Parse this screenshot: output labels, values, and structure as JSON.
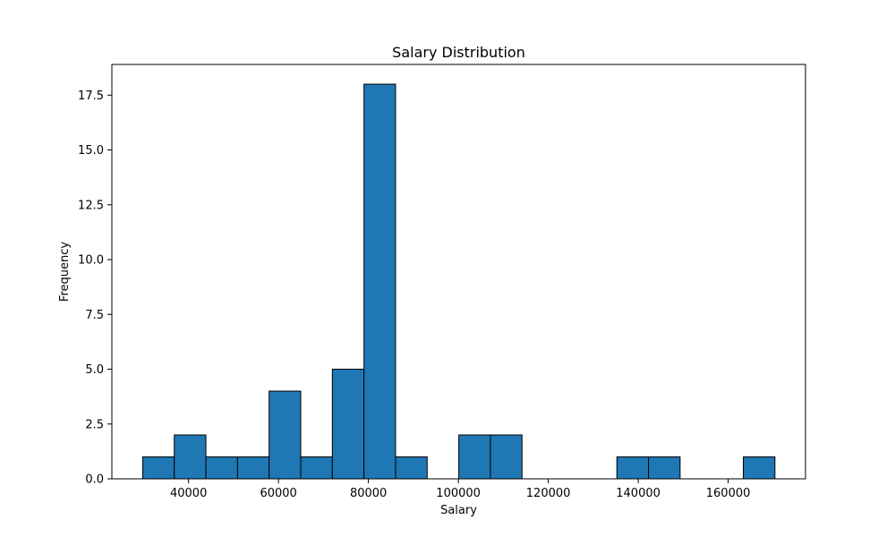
{
  "chart_data": {
    "type": "bar",
    "title": "Salary Distribution",
    "xlabel": "Salary",
    "ylabel": "Frequency",
    "bin_edges": [
      29800,
      36830,
      43860,
      50890,
      57920,
      64950,
      71980,
      79010,
      86040,
      93070,
      100100,
      107130,
      114160,
      121190,
      128220,
      135250,
      142280,
      149310,
      156340,
      163370,
      170400
    ],
    "values": [
      1,
      2,
      1,
      1,
      4,
      1,
      5,
      18,
      1,
      0,
      2,
      2,
      0,
      0,
      0,
      1,
      1,
      0,
      0,
      1
    ],
    "xlim": [
      22950,
      177200
    ],
    "ylim": [
      0,
      18.9
    ],
    "x_ticks": [
      40000,
      60000,
      80000,
      100000,
      120000,
      140000,
      160000
    ],
    "x_tick_labels": [
      "40000",
      "60000",
      "80000",
      "100000",
      "120000",
      "140000",
      "160000"
    ],
    "y_ticks": [
      0,
      2.5,
      5,
      7.5,
      10,
      12.5,
      15,
      17.5
    ],
    "y_tick_labels": [
      "0.0",
      "2.5",
      "5.0",
      "7.5",
      "10.0",
      "12.5",
      "15.0",
      "17.5"
    ],
    "grid": false,
    "legend": "none",
    "colors": {
      "bar_fill": "#1f77b4",
      "bar_edge": "#000000",
      "axes": "#000000",
      "background": "#ffffff"
    }
  }
}
